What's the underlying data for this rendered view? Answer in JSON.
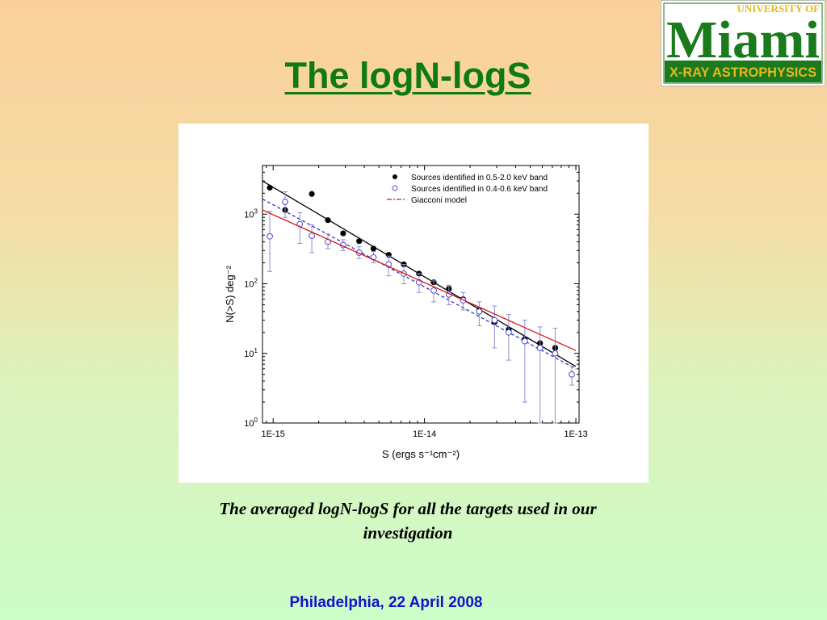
{
  "slide": {
    "title": "The logN-logS",
    "caption": "The averaged logN-logS  for all the targets used  in our investigation",
    "footer": "Philadelphia, 22 April 2008",
    "colors": {
      "title": "#0e7a12",
      "footer": "#1212c8",
      "logo_green": "#1a7a1c",
      "logo_gold": "#e8b820"
    }
  },
  "logo": {
    "top_text": "UNIVERSITY OF",
    "main_text": "Miami",
    "bottom_text": "X-RAY ASTROPHYSICS"
  },
  "chart_data": {
    "type": "scatter",
    "xlabel": "S (ergs s⁻¹cm⁻²)",
    "ylabel": "N(>S) deg⁻²",
    "xscale": "log",
    "yscale": "log",
    "xlim": [
      8.5e-16,
      1.05e-13
    ],
    "ylim": [
      1,
      5000
    ],
    "x_ticks": [
      {
        "value": 1e-15,
        "label": "1E-15"
      },
      {
        "value": 1e-14,
        "label": "1E-14"
      },
      {
        "value": 1e-13,
        "label": "1E-13"
      }
    ],
    "y_ticks": [
      {
        "value": 1,
        "base": "10",
        "exp": "0"
      },
      {
        "value": 10,
        "base": "10",
        "exp": "1"
      },
      {
        "value": 100,
        "base": "10",
        "exp": "2"
      },
      {
        "value": 1000,
        "base": "10",
        "exp": "3"
      }
    ],
    "legend_position": "top-right",
    "series": [
      {
        "name": "Sources identified in 0.5-2.0 keV band",
        "marker": "filled-circle",
        "color": "#000000",
        "points": [
          {
            "x": 9.5e-16,
            "y": 2400
          },
          {
            "x": 1.2e-15,
            "y": 1150
          },
          {
            "x": 1.8e-15,
            "y": 1950
          },
          {
            "x": 2.3e-15,
            "y": 820
          },
          {
            "x": 2.9e-15,
            "y": 530
          },
          {
            "x": 3.7e-15,
            "y": 410
          },
          {
            "x": 4.6e-15,
            "y": 320
          },
          {
            "x": 5.8e-15,
            "y": 260
          },
          {
            "x": 7.3e-15,
            "y": 190
          },
          {
            "x": 9.2e-15,
            "y": 140
          },
          {
            "x": 1.15e-14,
            "y": 105
          },
          {
            "x": 1.45e-14,
            "y": 85
          },
          {
            "x": 1.8e-14,
            "y": 60
          },
          {
            "x": 2.3e-14,
            "y": 42
          },
          {
            "x": 2.9e-14,
            "y": 28
          },
          {
            "x": 3.6e-14,
            "y": 22
          },
          {
            "x": 4.6e-14,
            "y": 16
          },
          {
            "x": 5.8e-14,
            "y": 14
          },
          {
            "x": 7.3e-14,
            "y": 12
          }
        ]
      },
      {
        "name": "Sources identified in 0.4-0.6 keV band",
        "marker": "open-circle",
        "color": "#4a4ad0",
        "points": [
          {
            "x": 9.5e-16,
            "y": 480,
            "ylo": 150,
            "yhi": 1100
          },
          {
            "x": 1.2e-15,
            "y": 1500,
            "ylo": 900,
            "yhi": 2100
          },
          {
            "x": 1.5e-15,
            "y": 720,
            "ylo": 380,
            "yhi": 1050
          },
          {
            "x": 1.8e-15,
            "y": 490,
            "ylo": 280,
            "yhi": 700
          },
          {
            "x": 2.3e-15,
            "y": 400,
            "ylo": 320,
            "yhi": 520
          },
          {
            "x": 2.9e-15,
            "y": 360,
            "ylo": 300,
            "yhi": 430
          },
          {
            "x": 3.7e-15,
            "y": 280,
            "ylo": 230,
            "yhi": 340
          },
          {
            "x": 4.6e-15,
            "y": 240,
            "ylo": 200,
            "yhi": 290
          },
          {
            "x": 5.8e-15,
            "y": 190,
            "ylo": 130,
            "yhi": 250
          },
          {
            "x": 7.3e-15,
            "y": 140,
            "ylo": 100,
            "yhi": 190
          },
          {
            "x": 9.2e-15,
            "y": 105,
            "ylo": 75,
            "yhi": 140
          },
          {
            "x": 1.15e-14,
            "y": 80,
            "ylo": 55,
            "yhi": 110
          },
          {
            "x": 1.45e-14,
            "y": 70,
            "ylo": 50,
            "yhi": 95
          },
          {
            "x": 1.8e-14,
            "y": 58,
            "ylo": 42,
            "yhi": 75
          },
          {
            "x": 2.3e-14,
            "y": 40,
            "ylo": 25,
            "yhi": 55
          },
          {
            "x": 2.9e-14,
            "y": 30,
            "ylo": 12,
            "yhi": 48
          },
          {
            "x": 3.6e-14,
            "y": 20,
            "ylo": 8,
            "yhi": 36
          },
          {
            "x": 4.6e-14,
            "y": 15,
            "ylo": 2,
            "yhi": 30
          },
          {
            "x": 5.8e-14,
            "y": 12,
            "ylo": 1,
            "yhi": 24
          },
          {
            "x": 7.3e-14,
            "y": 10,
            "ylo": 1,
            "yhi": 23
          },
          {
            "x": 9.4e-14,
            "y": 5,
            "ylo": 3.5,
            "yhi": 6.5
          }
        ]
      },
      {
        "name": "Giacconi model",
        "marker": "line",
        "color": "#d21818",
        "points": [
          {
            "x": 8.5e-16,
            "y": 1150
          },
          {
            "x": 1e-13,
            "y": 11
          }
        ]
      }
    ],
    "fit_lines": [
      {
        "color": "#000000",
        "style": "solid",
        "points": [
          {
            "x": 8.5e-16,
            "y": 3000
          },
          {
            "x": 1e-13,
            "y": 6.5
          }
        ]
      },
      {
        "color": "#3030c0",
        "style": "dashed",
        "points": [
          {
            "x": 8.5e-16,
            "y": 1650
          },
          {
            "x": 1e-13,
            "y": 6
          }
        ]
      }
    ]
  }
}
